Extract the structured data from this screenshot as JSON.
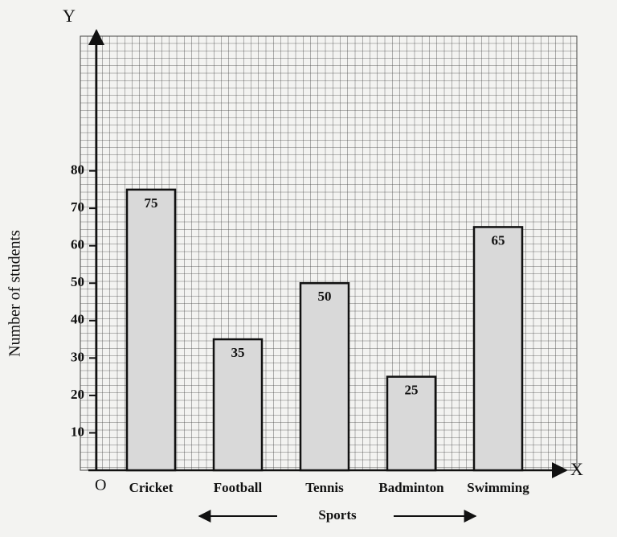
{
  "chart_data": {
    "type": "bar",
    "categories": [
      "Cricket",
      "Football",
      "Tennis",
      "Badminton",
      "Swimming"
    ],
    "values": [
      75,
      35,
      50,
      25,
      65
    ],
    "color": "#d9d9d9",
    "ylim": [
      0,
      116
    ],
    "yticks": [
      10,
      20,
      30,
      40,
      50,
      60,
      70,
      80
    ],
    "y_axis_label": "Number of students",
    "x_axis_label": "Sports",
    "y_axis_letter": "Y",
    "x_axis_letter": "X",
    "origin_label": "O",
    "grid": true
  }
}
